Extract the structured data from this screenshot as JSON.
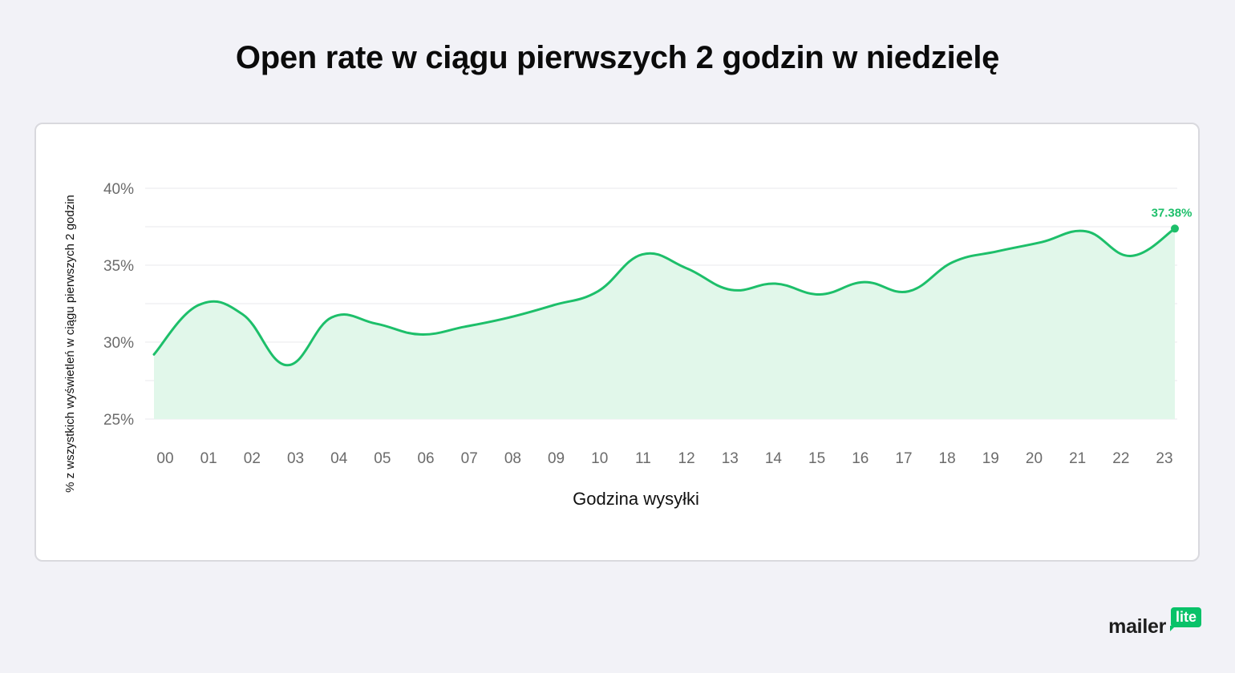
{
  "title": "Open rate w ciągu pierwszych 2 godzin w niedzielę",
  "logo": {
    "text": "mailer",
    "badge": "lite"
  },
  "chart_data": {
    "type": "area",
    "title": "Open rate w ciągu pierwszych 2 godzin w niedzielę",
    "xlabel": "Godzina wysyłki",
    "ylabel": "% z wszystkich wyświetleń w ciągu pierwszych 2 godzin",
    "categories": [
      "00",
      "01",
      "02",
      "03",
      "04",
      "05",
      "06",
      "07",
      "08",
      "09",
      "10",
      "11",
      "12",
      "13",
      "14",
      "15",
      "16",
      "17",
      "18",
      "19",
      "20",
      "21",
      "22",
      "23"
    ],
    "values": [
      29.2,
      32.4,
      31.8,
      28.5,
      31.6,
      31.2,
      30.5,
      31.0,
      31.6,
      32.4,
      33.3,
      35.7,
      34.8,
      33.4,
      33.8,
      33.1,
      33.9,
      33.3,
      35.2,
      35.9,
      36.5,
      37.2,
      35.6,
      37.38
    ],
    "ylim": [
      25,
      40
    ],
    "yticks": [
      25,
      30,
      35,
      40
    ],
    "ytick_labels": [
      "25%",
      "30%",
      "35%",
      "40%"
    ],
    "annotation": {
      "index": 23,
      "label": "37.38%"
    },
    "grid": true,
    "colors": {
      "line": "#1dbf6a",
      "fill": "#e1f7ea",
      "annotation": "#1dbf6a",
      "grid": "#e8e8ee",
      "tick_label": "#6b6b6b",
      "axis_title": "#111111"
    }
  }
}
